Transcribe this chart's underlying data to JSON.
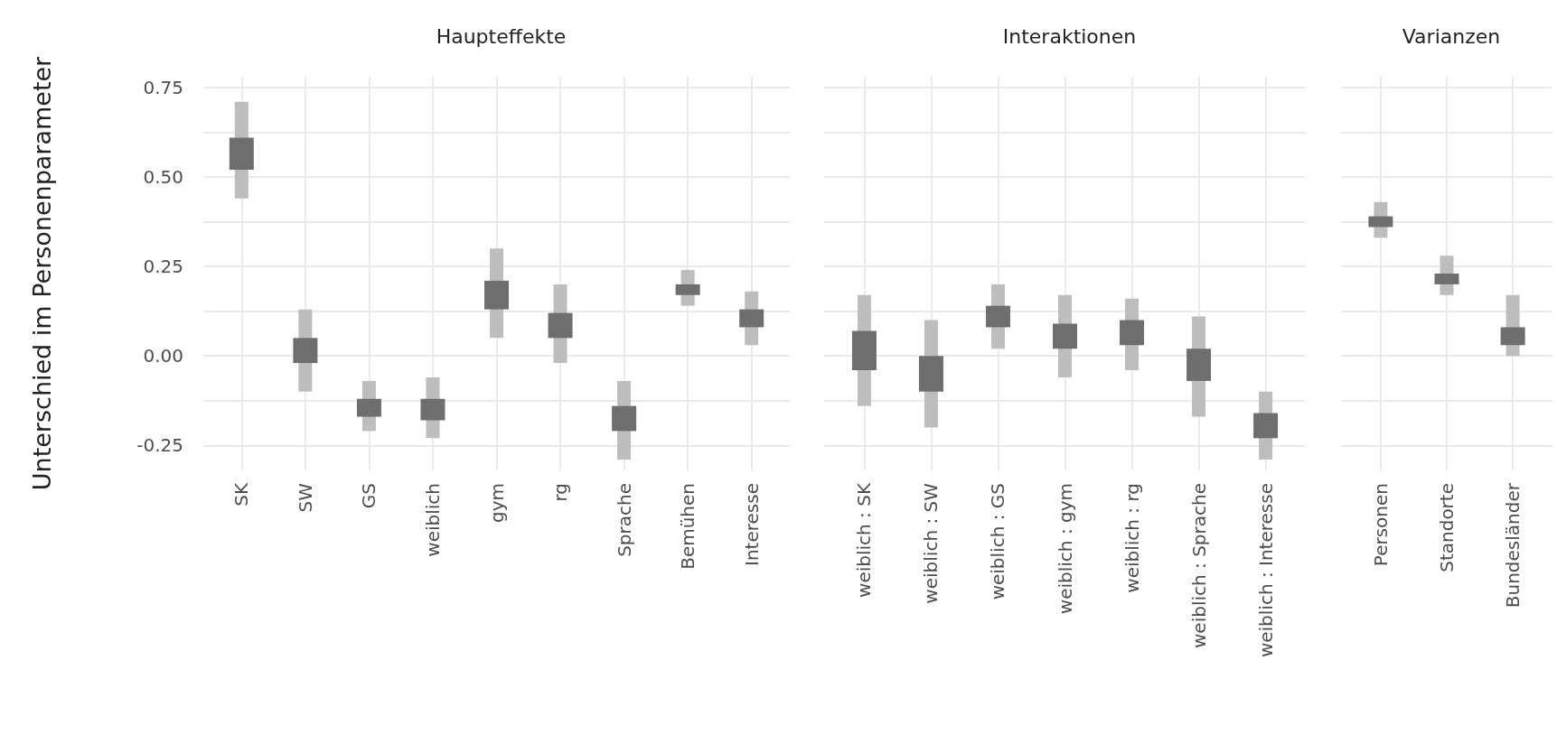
{
  "chart_data": [
    {
      "type": "bar",
      "title": "Haupteffekte",
      "ylabel": "Unterschied im Personenparameter",
      "categories": [
        "SK",
        "SW",
        "GS",
        "weiblich",
        "gym",
        "rg",
        "Sprache",
        "Bemühen",
        "Interesse"
      ],
      "ylim": [
        -0.32,
        0.78
      ],
      "yticks": [
        -0.25,
        {
          "value": -0.125,
          "label": null
        },
        "0.00",
        {
          "value": 0.125,
          "label": null
        },
        0.25,
        {
          "value": 0.375,
          "label": null
        },
        "0.50",
        {
          "value": 0.625,
          "label": null
        },
        0.75
      ],
      "grid": true,
      "series": [
        {
          "color": "#bdbdbd",
          "base": [
            0.44,
            -0.1,
            -0.21,
            -0.23,
            0.05,
            -0.02,
            -0.29,
            0.14,
            0.03
          ],
          "values": [
            0.27,
            0.23,
            0.14,
            0.17,
            0.25,
            0.22,
            0.22,
            0.1,
            0.15
          ]
        },
        {
          "color": "#6e6e6e",
          "base": [
            0.52,
            -0.02,
            -0.17,
            -0.18,
            0.13,
            0.05,
            -0.21,
            0.17,
            0.08
          ],
          "values": [
            0.09,
            0.07,
            0.05,
            0.06,
            0.08,
            0.07,
            0.07,
            0.03,
            0.05
          ]
        }
      ]
    },
    {
      "type": "bar",
      "title": "Interaktionen",
      "categories": [
        "weiblich : SK",
        "weiblich : SW",
        "weiblich : GS",
        "weiblich : gym",
        "weiblich : rg",
        "weiblich : Sprache",
        "weiblich : Interesse"
      ],
      "ylim": [
        -0.32,
        0.78
      ],
      "yticks": [
        -0.25,
        {
          "value": -0.125,
          "label": null
        },
        0,
        {
          "value": 0.125,
          "label": null
        },
        0.25,
        {
          "value": 0.375,
          "label": null
        },
        0.5,
        {
          "value": 0.625,
          "label": null
        },
        0.75
      ],
      "grid": true,
      "tick_labels": "x",
      "series": [
        {
          "color": "#bdbdbd",
          "base": [
            -0.14,
            -0.2,
            0.02,
            -0.06,
            -0.04,
            -0.17,
            -0.29
          ],
          "values": [
            0.31,
            0.3,
            0.18,
            0.23,
            0.2,
            0.28,
            0.19
          ]
        },
        {
          "color": "#6e6e6e",
          "base": [
            -0.04,
            -0.1,
            0.08,
            0.02,
            0.03,
            -0.07,
            -0.23
          ],
          "values": [
            0.11,
            0.1,
            0.06,
            0.07,
            0.07,
            0.09,
            0.07
          ]
        }
      ]
    },
    {
      "type": "bar",
      "title": "Varianzen",
      "categories": [
        "Personen",
        "Standorte",
        "Bundesländer"
      ],
      "ylim": [
        -0.32,
        0.78
      ],
      "yticks": [
        -0.25,
        {
          "value": -0.125,
          "label": null
        },
        0,
        {
          "value": 0.125,
          "label": null
        },
        0.25,
        {
          "value": 0.375,
          "label": null
        },
        0.5,
        {
          "value": 0.625,
          "label": null
        },
        0.75
      ],
      "grid": true,
      "tick_labels": "x",
      "series": [
        {
          "color": "#bdbdbd",
          "base": [
            0.33,
            0.17,
            0.0
          ],
          "values": [
            0.1,
            0.11,
            0.17
          ]
        },
        {
          "color": "#6e6e6e",
          "base": [
            0.36,
            0.2,
            0.03
          ],
          "values": [
            0.03,
            0.03,
            0.05
          ]
        }
      ]
    }
  ]
}
